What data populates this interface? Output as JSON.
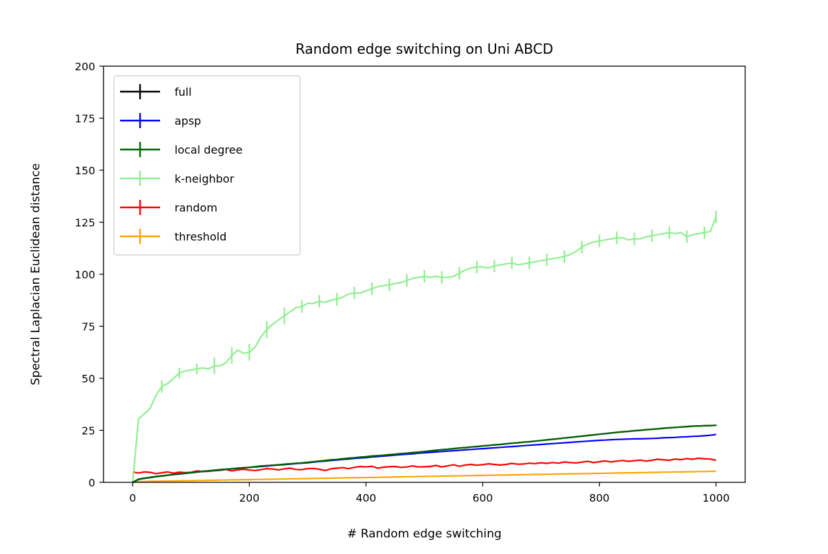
{
  "chart_data": {
    "type": "line",
    "title": "Random edge switching on Uni ABCD",
    "xlabel": "# Random edge switching",
    "ylabel": "Spectral Laplacian Euclidean distance",
    "xlim": [
      -50,
      1050
    ],
    "ylim": [
      0,
      200
    ],
    "xticks": [
      0,
      200,
      400,
      600,
      800,
      1000
    ],
    "yticks": [
      0,
      25,
      50,
      75,
      100,
      125,
      150,
      175,
      200
    ],
    "grid": false,
    "legend_position": "upper-left",
    "x": [
      0,
      10,
      20,
      30,
      40,
      50,
      60,
      70,
      80,
      90,
      100,
      110,
      120,
      130,
      140,
      150,
      160,
      170,
      180,
      190,
      200,
      210,
      220,
      230,
      240,
      250,
      260,
      270,
      280,
      290,
      300,
      310,
      320,
      330,
      340,
      350,
      360,
      370,
      380,
      390,
      400,
      410,
      420,
      430,
      440,
      450,
      460,
      470,
      480,
      490,
      500,
      510,
      520,
      530,
      540,
      550,
      560,
      570,
      580,
      590,
      600,
      610,
      620,
      630,
      640,
      650,
      660,
      670,
      680,
      690,
      700,
      710,
      720,
      730,
      740,
      750,
      760,
      770,
      780,
      790,
      800,
      810,
      820,
      830,
      840,
      850,
      860,
      870,
      880,
      890,
      900,
      910,
      920,
      930,
      940,
      950,
      960,
      970,
      980,
      990,
      1000
    ],
    "series": [
      {
        "name": "full",
        "color": "#000000",
        "values": [
          0,
          1.5,
          2,
          2.4,
          2.8,
          3.1,
          3.4,
          3.8,
          4.1,
          4.4,
          4.7,
          5,
          5.3,
          5.5,
          5.8,
          6.1,
          6.3,
          6.5,
          6.8,
          7,
          7.2,
          7.5,
          7.8,
          8,
          8.2,
          8.4,
          8.7,
          8.9,
          9.1,
          9.3,
          9.6,
          9.9,
          10.2,
          10.5,
          10.8,
          11,
          11.3,
          11.6,
          11.8,
          12.1,
          12.3,
          12.6,
          12.8,
          13,
          13.3,
          13.5,
          13.8,
          14,
          14.3,
          14.5,
          14.8,
          15.1,
          15.4,
          15.7,
          15.9,
          16.2,
          16.5,
          16.7,
          17,
          17.2,
          17.5,
          17.7,
          18,
          18.2,
          18.5,
          18.8,
          19,
          19.3,
          19.5,
          19.8,
          20.1,
          20.4,
          20.7,
          21,
          21.3,
          21.6,
          21.9,
          22.2,
          22.5,
          22.8,
          23.1,
          23.4,
          23.7,
          24,
          24.3,
          24.5,
          24.8,
          25,
          25.3,
          25.5,
          25.7,
          26,
          26.2,
          26.4,
          26.6,
          26.8,
          27,
          27.1,
          27.2,
          27.3,
          27.4
        ],
        "errors": [
          0,
          0.2,
          0.2,
          0.2,
          0.2,
          0.2,
          0.2,
          0.2,
          0.2,
          0.2,
          0.2,
          0.2,
          0.2,
          0.2,
          0.2,
          0.2,
          0.2,
          0.2,
          0.2,
          0.2,
          0.2,
          0.2,
          0.2,
          0.2,
          0.2,
          0.2,
          0.2,
          0.2,
          0.2,
          0.2,
          0.2,
          0.2,
          0.2,
          0.2,
          0.2,
          0.2,
          0.2,
          0.2,
          0.2,
          0.2,
          0.2,
          0.2,
          0.2,
          0.2,
          0.2,
          0.2,
          0.2,
          0.2,
          0.2,
          0.2,
          0.2,
          0.2,
          0.2,
          0.2,
          0.2,
          0.2,
          0.2,
          0.2,
          0.2,
          0.2,
          0.2,
          0.2,
          0.2,
          0.2,
          0.2,
          0.2,
          0.2,
          0.2,
          0.2,
          0.2,
          0.2,
          0.2,
          0.2,
          0.2,
          0.2,
          0.2,
          0.2,
          0.2,
          0.2,
          0.2,
          0.2,
          0.2,
          0.2,
          0.2,
          0.2,
          0.2,
          0.2,
          0.2,
          0.2,
          0.2,
          0.2,
          0.2,
          0.2,
          0.2,
          0.2,
          0.2,
          0.2,
          0.2,
          0.2,
          0.2,
          0.2
        ]
      },
      {
        "name": "apsp",
        "color": "#0000ff",
        "values": [
          0,
          1.4,
          1.9,
          2.3,
          2.7,
          3,
          3.4,
          3.7,
          4,
          4.3,
          4.6,
          4.9,
          5.2,
          5.5,
          5.7,
          6,
          6.2,
          6.5,
          6.7,
          6.9,
          7.2,
          7.4,
          7.6,
          7.8,
          8.1,
          8.3,
          8.5,
          8.7,
          9,
          9.2,
          9.4,
          9.7,
          10,
          10.2,
          10.5,
          10.7,
          11,
          11.2,
          11.5,
          11.7,
          11.9,
          12.2,
          12.4,
          12.6,
          12.8,
          13.1,
          13.3,
          13.5,
          13.7,
          14,
          14.2,
          14.4,
          14.6,
          14.8,
          15,
          15.2,
          15.4,
          15.6,
          15.8,
          16,
          16.2,
          16.4,
          16.6,
          16.8,
          17,
          17.2,
          17.4,
          17.6,
          17.8,
          18,
          18.2,
          18.4,
          18.6,
          18.8,
          19,
          19.2,
          19.4,
          19.6,
          19.8,
          20,
          20.2,
          20.3,
          20.5,
          20.6,
          20.7,
          20.8,
          20.9,
          20.9,
          21,
          21.1,
          21.2,
          21.4,
          21.5,
          21.6,
          21.8,
          21.9,
          22.1,
          22.2,
          22.4,
          22.6,
          23
        ]
      },
      {
        "name": "local degree",
        "color": "#006400",
        "values": [
          0,
          1.5,
          2,
          2.4,
          2.8,
          3.1,
          3.4,
          3.8,
          4.1,
          4.4,
          4.7,
          5,
          5.3,
          5.5,
          5.8,
          6.1,
          6.3,
          6.5,
          6.8,
          7,
          7.2,
          7.5,
          7.8,
          8,
          8.2,
          8.4,
          8.7,
          8.9,
          9.1,
          9.3,
          9.6,
          9.9,
          10.2,
          10.5,
          10.8,
          11,
          11.3,
          11.6,
          11.8,
          12.1,
          12.3,
          12.6,
          12.8,
          13,
          13.3,
          13.5,
          13.8,
          14,
          14.3,
          14.5,
          14.8,
          15.1,
          15.4,
          15.7,
          15.9,
          16.2,
          16.5,
          16.7,
          17,
          17.2,
          17.5,
          17.7,
          18,
          18.2,
          18.5,
          18.8,
          19,
          19.3,
          19.5,
          19.8,
          20.1,
          20.4,
          20.7,
          21,
          21.3,
          21.6,
          21.9,
          22.2,
          22.5,
          22.8,
          23.1,
          23.4,
          23.7,
          24,
          24.3,
          24.5,
          24.8,
          25,
          25.3,
          25.5,
          25.7,
          26,
          26.2,
          26.4,
          26.6,
          26.8,
          27,
          27.1,
          27.2,
          27.3,
          27.4
        ]
      },
      {
        "name": "k-neighbor",
        "color": "#90ee90",
        "values": [
          0,
          30.5,
          33,
          35.5,
          42,
          46,
          47.5,
          50,
          52.5,
          53.5,
          54,
          54.5,
          55,
          54.5,
          56,
          56,
          57.5,
          61,
          63.5,
          62,
          62.5,
          65,
          70,
          73.5,
          76,
          78,
          80,
          82,
          84,
          84.5,
          86,
          86,
          87,
          86.5,
          87.5,
          88,
          89,
          90.5,
          91,
          91,
          92,
          93,
          94,
          94.5,
          95,
          95.5,
          96,
          97,
          98,
          98.5,
          99,
          98.5,
          99,
          98.5,
          98.5,
          99,
          100.5,
          102,
          103,
          103.5,
          103.5,
          103,
          104,
          104.5,
          105,
          105.5,
          104.5,
          105,
          105.5,
          106,
          106.5,
          107,
          107.5,
          108,
          108.5,
          109.5,
          111,
          113,
          114.5,
          115.5,
          116,
          116.5,
          117,
          117.5,
          117.5,
          116.5,
          117,
          117,
          118,
          118.5,
          119,
          119.5,
          120,
          119.5,
          120,
          118,
          119,
          119.5,
          120,
          120.5,
          127.5
        ],
        "errors": [
          0,
          0,
          0,
          0,
          0,
          3,
          0,
          0,
          2.5,
          0,
          0,
          2.5,
          0,
          0,
          4,
          0,
          0,
          4,
          0,
          0,
          4,
          0,
          0,
          4,
          0,
          0,
          4,
          0,
          0,
          3,
          0,
          0,
          3,
          0,
          0,
          3,
          0,
          0,
          3,
          0,
          0,
          3,
          0,
          0,
          3,
          0,
          0,
          3,
          0,
          0,
          3,
          0,
          0,
          3,
          0,
          0,
          3,
          0,
          0,
          3,
          0,
          0,
          3,
          0,
          0,
          3,
          0,
          0,
          3,
          0,
          0,
          3,
          0,
          0,
          3,
          0,
          0,
          3,
          0,
          0,
          3,
          0,
          0,
          3,
          0,
          0,
          3,
          0,
          0,
          3,
          0,
          0,
          3,
          0,
          0,
          3,
          0,
          0,
          3,
          0,
          3
        ]
      },
      {
        "name": "random",
        "color": "#ff0000",
        "values": [
          5,
          4.5,
          5,
          4.8,
          4.2,
          4.6,
          5,
          4.4,
          4.9,
          4.7,
          4.8,
          5.5,
          5.2,
          5.3,
          5.6,
          5.8,
          6.2,
          5.5,
          6,
          6.3,
          5.9,
          5.7,
          6.1,
          6.6,
          6.4,
          6,
          6.5,
          6.8,
          6.2,
          6.1,
          6.6,
          6.7,
          6.3,
          5.7,
          6.5,
          6.8,
          7.1,
          6.6,
          7.2,
          7.6,
          7.4,
          7.7,
          6.8,
          7.3,
          7.5,
          7.6,
          7.2,
          7.4,
          7.9,
          7.4,
          7.5,
          7.6,
          8.1,
          7.4,
          7.9,
          8.4,
          7.7,
          8.3,
          8.6,
          8.2,
          8.5,
          8.9,
          8.6,
          8.3,
          8.6,
          9.1,
          8.7,
          8.8,
          9.2,
          9,
          9.4,
          9.1,
          9.5,
          9.2,
          9.8,
          9.5,
          9.3,
          9.7,
          10.1,
          9.5,
          9.9,
          10.3,
          9.8,
          10.2,
          10.5,
          10.1,
          10.4,
          10.7,
          10.2,
          10.6,
          11.1,
          10.8,
          10.6,
          11.2,
          10.9,
          11.4,
          11.1,
          11.6,
          11.3,
          11.2,
          10.6
        ]
      },
      {
        "name": "threshold",
        "color": "#ffa500",
        "values": [
          0.3,
          0.4,
          0.4,
          0.5,
          0.5,
          0.6,
          0.6,
          0.7,
          0.7,
          0.8,
          0.8,
          0.9,
          0.9,
          1,
          1,
          1.1,
          1.1,
          1.2,
          1.2,
          1.3,
          1.3,
          1.4,
          1.4,
          1.5,
          1.5,
          1.6,
          1.6,
          1.7,
          1.7,
          1.8,
          1.8,
          1.9,
          1.9,
          2,
          2,
          2.1,
          2.1,
          2.2,
          2.2,
          2.3,
          2.3,
          2.4,
          2.4,
          2.5,
          2.5,
          2.6,
          2.6,
          2.7,
          2.7,
          2.8,
          2.8,
          2.9,
          2.9,
          3,
          3,
          3.1,
          3.1,
          3.2,
          3.2,
          3.3,
          3.3,
          3.4,
          3.4,
          3.5,
          3.5,
          3.6,
          3.6,
          3.7,
          3.7,
          3.8,
          3.8,
          3.9,
          3.9,
          4,
          4,
          4.1,
          4.1,
          4.2,
          4.2,
          4.3,
          4.3,
          4.4,
          4.4,
          4.5,
          4.5,
          4.6,
          4.6,
          4.7,
          4.7,
          4.8,
          4.8,
          4.9,
          4.9,
          5,
          5,
          5.1,
          5.1,
          5.2,
          5.2,
          5.3,
          5.3
        ]
      }
    ]
  }
}
